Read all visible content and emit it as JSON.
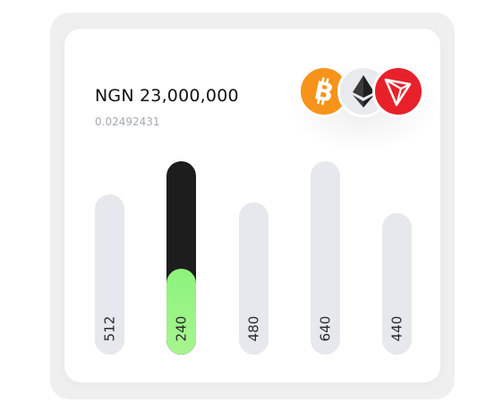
{
  "wallet": {
    "amount": "NGN 23,000,000",
    "crypto_amount": "0.02492431"
  },
  "coins": [
    {
      "icon": "bitcoin-icon",
      "color": "#f7931a"
    },
    {
      "icon": "ethereum-icon",
      "color": "#e8eaee"
    },
    {
      "icon": "tron-icon",
      "color": "#e8202a"
    }
  ],
  "chart_data": {
    "type": "bar",
    "values": [
      512,
      240,
      480,
      640,
      440
    ],
    "labels": [
      "512",
      "240",
      "480",
      "640",
      "440"
    ],
    "highlighted_index": 1,
    "highlight_colors": {
      "track": "#1d1d1d",
      "fill": "#8cf37c"
    },
    "track_color": "#e6e8ed"
  }
}
